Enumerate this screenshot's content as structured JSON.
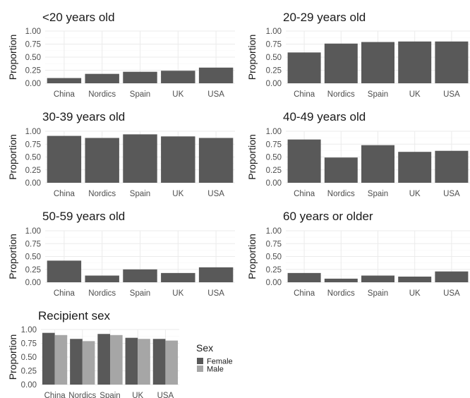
{
  "chart_data": [
    {
      "type": "bar",
      "title": "<20 years old",
      "ylabel": "Proportion",
      "categories": [
        "China",
        "Nordics",
        "Spain",
        "UK",
        "USA"
      ],
      "values": [
        0.1,
        0.18,
        0.22,
        0.24,
        0.3
      ],
      "ylim": [
        0,
        1.0
      ],
      "yticks": [
        "0.00",
        "0.25",
        "0.50",
        "0.75",
        "1.00"
      ],
      "color": "#595959"
    },
    {
      "type": "bar",
      "title": "20-29 years old",
      "ylabel": "Proportion",
      "categories": [
        "China",
        "Nordics",
        "Spain",
        "UK",
        "USA"
      ],
      "values": [
        0.59,
        0.76,
        0.79,
        0.8,
        0.8
      ],
      "ylim": [
        0,
        1.0
      ],
      "yticks": [
        "0.00",
        "0.25",
        "0.50",
        "0.75",
        "1.00"
      ],
      "color": "#595959"
    },
    {
      "type": "bar",
      "title": "30-39 years old",
      "ylabel": "Proportion",
      "categories": [
        "China",
        "Nordics",
        "Spain",
        "UK",
        "USA"
      ],
      "values": [
        0.91,
        0.87,
        0.94,
        0.9,
        0.87
      ],
      "ylim": [
        0,
        1.0
      ],
      "yticks": [
        "0.00",
        "0.25",
        "0.50",
        "0.75",
        "1.00"
      ],
      "color": "#595959"
    },
    {
      "type": "bar",
      "title": "40-49 years old",
      "ylabel": "Proportion",
      "categories": [
        "China",
        "Nordics",
        "Spain",
        "UK",
        "USA"
      ],
      "values": [
        0.84,
        0.49,
        0.73,
        0.6,
        0.62
      ],
      "ylim": [
        0,
        1.0
      ],
      "yticks": [
        "0.00",
        "0.25",
        "0.50",
        "0.75",
        "1.00"
      ],
      "color": "#595959"
    },
    {
      "type": "bar",
      "title": "50-59 years old",
      "ylabel": "Proportion",
      "categories": [
        "China",
        "Nordics",
        "Spain",
        "UK",
        "USA"
      ],
      "values": [
        0.42,
        0.13,
        0.25,
        0.18,
        0.29
      ],
      "ylim": [
        0,
        1.0
      ],
      "yticks": [
        "0.00",
        "0.25",
        "0.50",
        "0.75",
        "1.00"
      ],
      "color": "#595959"
    },
    {
      "type": "bar",
      "title": "60 years or older",
      "ylabel": "Proportion",
      "categories": [
        "China",
        "Nordics",
        "Spain",
        "UK",
        "USA"
      ],
      "values": [
        0.18,
        0.07,
        0.13,
        0.11,
        0.21
      ],
      "ylim": [
        0,
        1.0
      ],
      "yticks": [
        "0.00",
        "0.25",
        "0.50",
        "0.75",
        "1.00"
      ],
      "color": "#595959"
    },
    {
      "type": "bar",
      "title": "Recipient sex",
      "ylabel": "Proportion",
      "categories": [
        "China",
        "Nordics",
        "Spain",
        "UK",
        "USA"
      ],
      "ylim": [
        0,
        1.0
      ],
      "yticks": [
        "0.00",
        "0.25",
        "0.50",
        "0.75",
        "1.00"
      ],
      "series": [
        {
          "name": "Female",
          "color": "#595959",
          "values": [
            0.94,
            0.83,
            0.92,
            0.85,
            0.83
          ]
        },
        {
          "name": "Male",
          "color": "#a6a6a6",
          "values": [
            0.9,
            0.79,
            0.9,
            0.83,
            0.8
          ]
        }
      ],
      "legend_title": "Sex",
      "legend_position": "right"
    }
  ]
}
